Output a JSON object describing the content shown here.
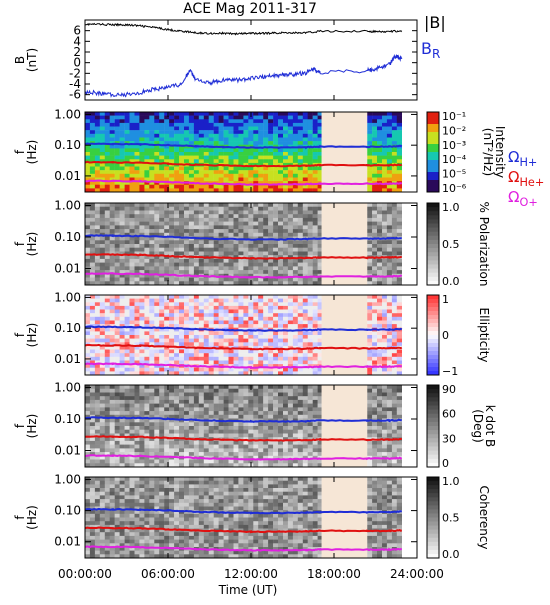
{
  "chart_data": {
    "type": "line",
    "title": "ACE Mag 2011-317",
    "xlabel": "Time (UT)",
    "x_ticks": [
      "00:00:00",
      "06:00:00",
      "12:00:00",
      "18:00:00",
      "24:00:00"
    ],
    "xlim_hours": [
      0,
      24
    ],
    "data_gap_hours": [
      17.1,
      20.4
    ],
    "panels": [
      {
        "id": "field",
        "type": "line",
        "ylabel": "B\n(nT)",
        "ylim": [
          -7,
          8
        ],
        "y_ticks": [
          -6,
          -4,
          -2,
          0,
          2,
          4,
          6
        ],
        "series": [
          {
            "name": "|B|",
            "color": "#000000",
            "x": [
              0,
              1,
              2,
              3,
              4,
              5,
              6,
              7,
              8,
              9,
              10,
              11,
              12,
              13,
              14,
              15,
              16,
              17,
              20.4,
              21,
              22,
              22.9
            ],
            "values": [
              7.2,
              7.2,
              7.1,
              7.1,
              6.9,
              6.6,
              6.2,
              5.9,
              5.6,
              5.5,
              5.5,
              5.4,
              5.5,
              5.5,
              5.6,
              5.6,
              5.6,
              5.9,
              5.9,
              5.8,
              5.8,
              6.0
            ]
          },
          {
            "name": "B<sub>R</sub>",
            "color": "#1f2dd6",
            "x": [
              0,
              1,
              2,
              3,
              4,
              5,
              6,
              7,
              7.6,
              8,
              9,
              10,
              11,
              12,
              13,
              14,
              15,
              16,
              16.5,
              17,
              20.4,
              21,
              22,
              22.5,
              22.9
            ],
            "values": [
              -5.5,
              -5.7,
              -6.0,
              -6.0,
              -5.6,
              -5.0,
              -4.6,
              -4.0,
              -1.3,
              -3.3,
              -3.8,
              -3.2,
              -3.3,
              -3.0,
              -2.6,
              -2.4,
              -2.2,
              -1.9,
              -1.3,
              -2.0,
              -1.5,
              -1.2,
              -0.3,
              1.3,
              0.7
            ]
          }
        ]
      },
      {
        "id": "intensity",
        "type": "heatmap",
        "ylabel": "f\n(Hz)",
        "ylim": [
          0.003,
          1.2
        ],
        "y_ticks": [
          "1.00",
          "0.10",
          "0.01"
        ],
        "colorbar": {
          "label": "Intensity\n(nT²/Hz)",
          "scale": "log",
          "ticks": [
            "10⁻¹",
            "10⁻²",
            "10⁻³",
            "10⁻⁴",
            "10⁻⁵",
            "10⁻⁶"
          ]
        }
      },
      {
        "id": "polarization",
        "type": "heatmap",
        "ylabel": "f\n(Hz)",
        "ylim": [
          0.003,
          1.2
        ],
        "y_ticks": [
          "1.00",
          "0.10",
          "0.01"
        ],
        "colorbar": {
          "label": "% Polarization",
          "ticks": [
            "1.0",
            "0.5",
            "0.0"
          ]
        }
      },
      {
        "id": "ellipticity",
        "type": "heatmap",
        "ylabel": "f\n(Hz)",
        "ylim": [
          0.003,
          1.2
        ],
        "y_ticks": [
          "1.00",
          "0.10",
          "0.01"
        ],
        "colorbar": {
          "label": "Ellipticity",
          "ticks": [
            "1",
            "0",
            "−1"
          ]
        }
      },
      {
        "id": "kdotb",
        "type": "heatmap",
        "ylabel": "f\n(Hz)",
        "ylim": [
          0.003,
          1.2
        ],
        "y_ticks": [
          "1.00",
          "0.10",
          "0.01"
        ],
        "colorbar": {
          "label": "k dot B\n(Deg)",
          "ticks": [
            "90",
            "60",
            "30",
            "0"
          ]
        }
      },
      {
        "id": "coherency",
        "type": "heatmap",
        "ylabel": "f\n(Hz)",
        "ylim": [
          0.003,
          1.2
        ],
        "y_ticks": [
          "1.00",
          "0.10",
          "0.01"
        ],
        "colorbar": {
          "label": "Coherency",
          "ticks": [
            "1.0",
            "0.5",
            "0.0"
          ]
        }
      }
    ],
    "gyrofrequencies": [
      {
        "name": "Ω<sub>H+</sub>",
        "color": "#1f2dd6",
        "x": [
          0,
          2,
          4,
          6,
          8,
          10,
          12,
          14,
          16,
          17,
          20.4,
          22,
          22.9
        ],
        "values_hz": [
          0.111,
          0.11,
          0.107,
          0.101,
          0.093,
          0.087,
          0.084,
          0.084,
          0.086,
          0.09,
          0.089,
          0.09,
          0.093
        ]
      },
      {
        "name": "Ω<sub>He+</sub>",
        "color": "#e01010",
        "x": [
          0,
          2,
          4,
          6,
          8,
          10,
          12,
          14,
          16,
          17,
          20.4,
          22,
          22.9
        ],
        "values_hz": [
          0.028,
          0.0275,
          0.027,
          0.025,
          0.023,
          0.022,
          0.021,
          0.021,
          0.0215,
          0.0225,
          0.022,
          0.0225,
          0.023
        ]
      },
      {
        "name": "Ω<sub>O+</sub>",
        "color": "#e020e0",
        "x": [
          0,
          2,
          4,
          6,
          8,
          10,
          12,
          14,
          16,
          17,
          20.4,
          22,
          22.9
        ],
        "values_hz": [
          0.0069,
          0.0069,
          0.0067,
          0.0063,
          0.0058,
          0.0055,
          0.0053,
          0.0053,
          0.0054,
          0.0056,
          0.0056,
          0.0056,
          0.0058
        ]
      }
    ]
  }
}
